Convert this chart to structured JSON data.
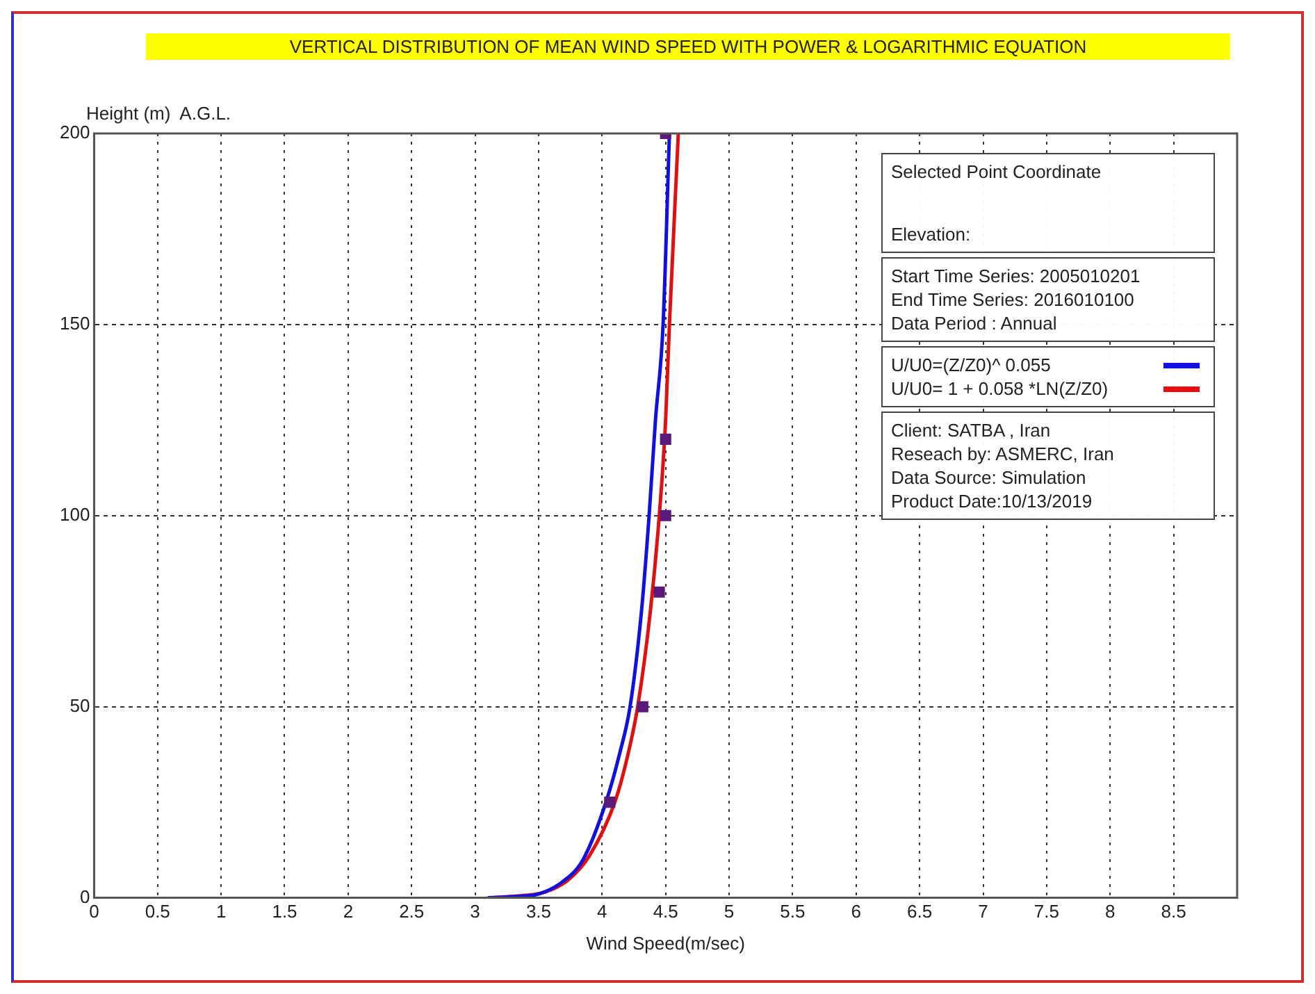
{
  "chart_data": {
    "type": "line",
    "title": "VERTICAL DISTRIBUTION OF MEAN WIND SPEED WITH POWER & LOGARITHMIC EQUATION",
    "xlabel": "Wind Speed(m/sec)",
    "ylabel": "Height (m)  A.G.L.",
    "xlim": [
      0,
      9
    ],
    "xticks": [
      0,
      0.5,
      1,
      1.5,
      2,
      2.5,
      3,
      3.5,
      4,
      4.5,
      5,
      5.5,
      6,
      6.5,
      7,
      7.5,
      8,
      8.5
    ],
    "ylim": [
      0,
      200
    ],
    "yticks": [
      0,
      50,
      100,
      150,
      200
    ],
    "grid": true,
    "legend": "right",
    "line_style": "solid",
    "series": [
      {
        "name": "U/U0=(Z/Z0)^ 0.055",
        "color": "#1010e0",
        "x": [
          3.1,
          3.3,
          3.5,
          3.68,
          3.85,
          4.03,
          4.14,
          4.22,
          4.31,
          4.37,
          4.42,
          4.48,
          4.53
        ],
        "values": [
          0,
          0.3,
          1,
          4,
          10,
          25,
          38,
          50,
          75,
          100,
          125,
          150,
          200
        ]
      },
      {
        "name": "U/U0= 1 + 0.058 *LN(Z/Z0)",
        "color": "#e01010",
        "x": [
          3.1,
          3.35,
          3.55,
          3.73,
          3.9,
          4.1,
          4.2,
          4.28,
          4.38,
          4.45,
          4.5,
          4.53,
          4.6
        ],
        "values": [
          0,
          0.5,
          1.5,
          4.6,
          11,
          25,
          37,
          50,
          75,
          100,
          125,
          150,
          200
        ]
      },
      {
        "type": "scatter",
        "marker": "square",
        "color": "#5a1a7a",
        "x": [
          4.06,
          4.32,
          4.45,
          4.5,
          4.5,
          4.5
        ],
        "values": [
          25,
          50,
          80,
          100,
          120,
          200
        ]
      }
    ],
    "annotations": [
      "Selected Point Coordinate",
      "Elevation:",
      "Start Time Series: 2005010201",
      "End Time Series: 2016010100",
      "Data Period : Annual",
      "Client: SATBA , Iran",
      "Reseach by: ASMERC, Iran",
      "Data Source: Simulation",
      "Product Date:10/13/2019"
    ]
  }
}
